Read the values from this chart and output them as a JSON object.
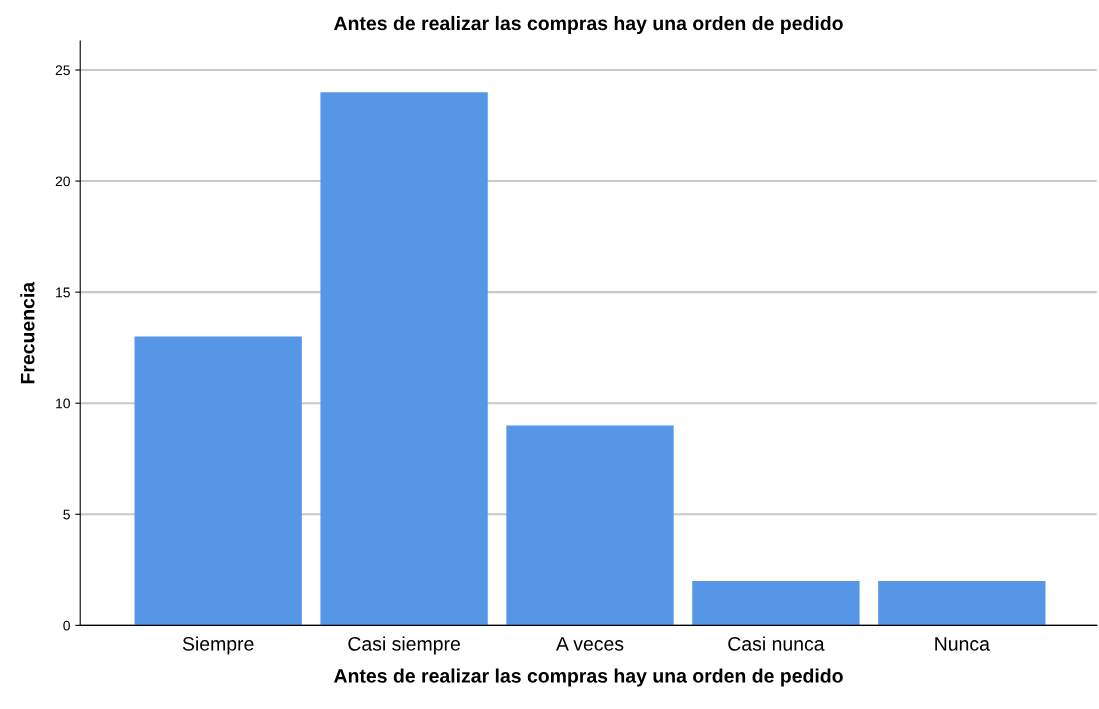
{
  "chart_data": {
    "type": "bar",
    "title": "Antes de realizar las compras hay una orden de pedido",
    "xlabel": "Antes de realizar las compras hay una orden de pedido",
    "ylabel": "Frecuencia",
    "categories": [
      "Siempre",
      "Casi siempre",
      "A veces",
      "Casi nunca",
      "Nunca"
    ],
    "values": [
      13,
      24,
      9,
      2,
      2
    ],
    "color": "#5596e6",
    "ylim": [
      0,
      26.3
    ],
    "yticks": [
      0,
      5,
      10,
      15,
      20,
      25
    ],
    "grid": "y"
  }
}
